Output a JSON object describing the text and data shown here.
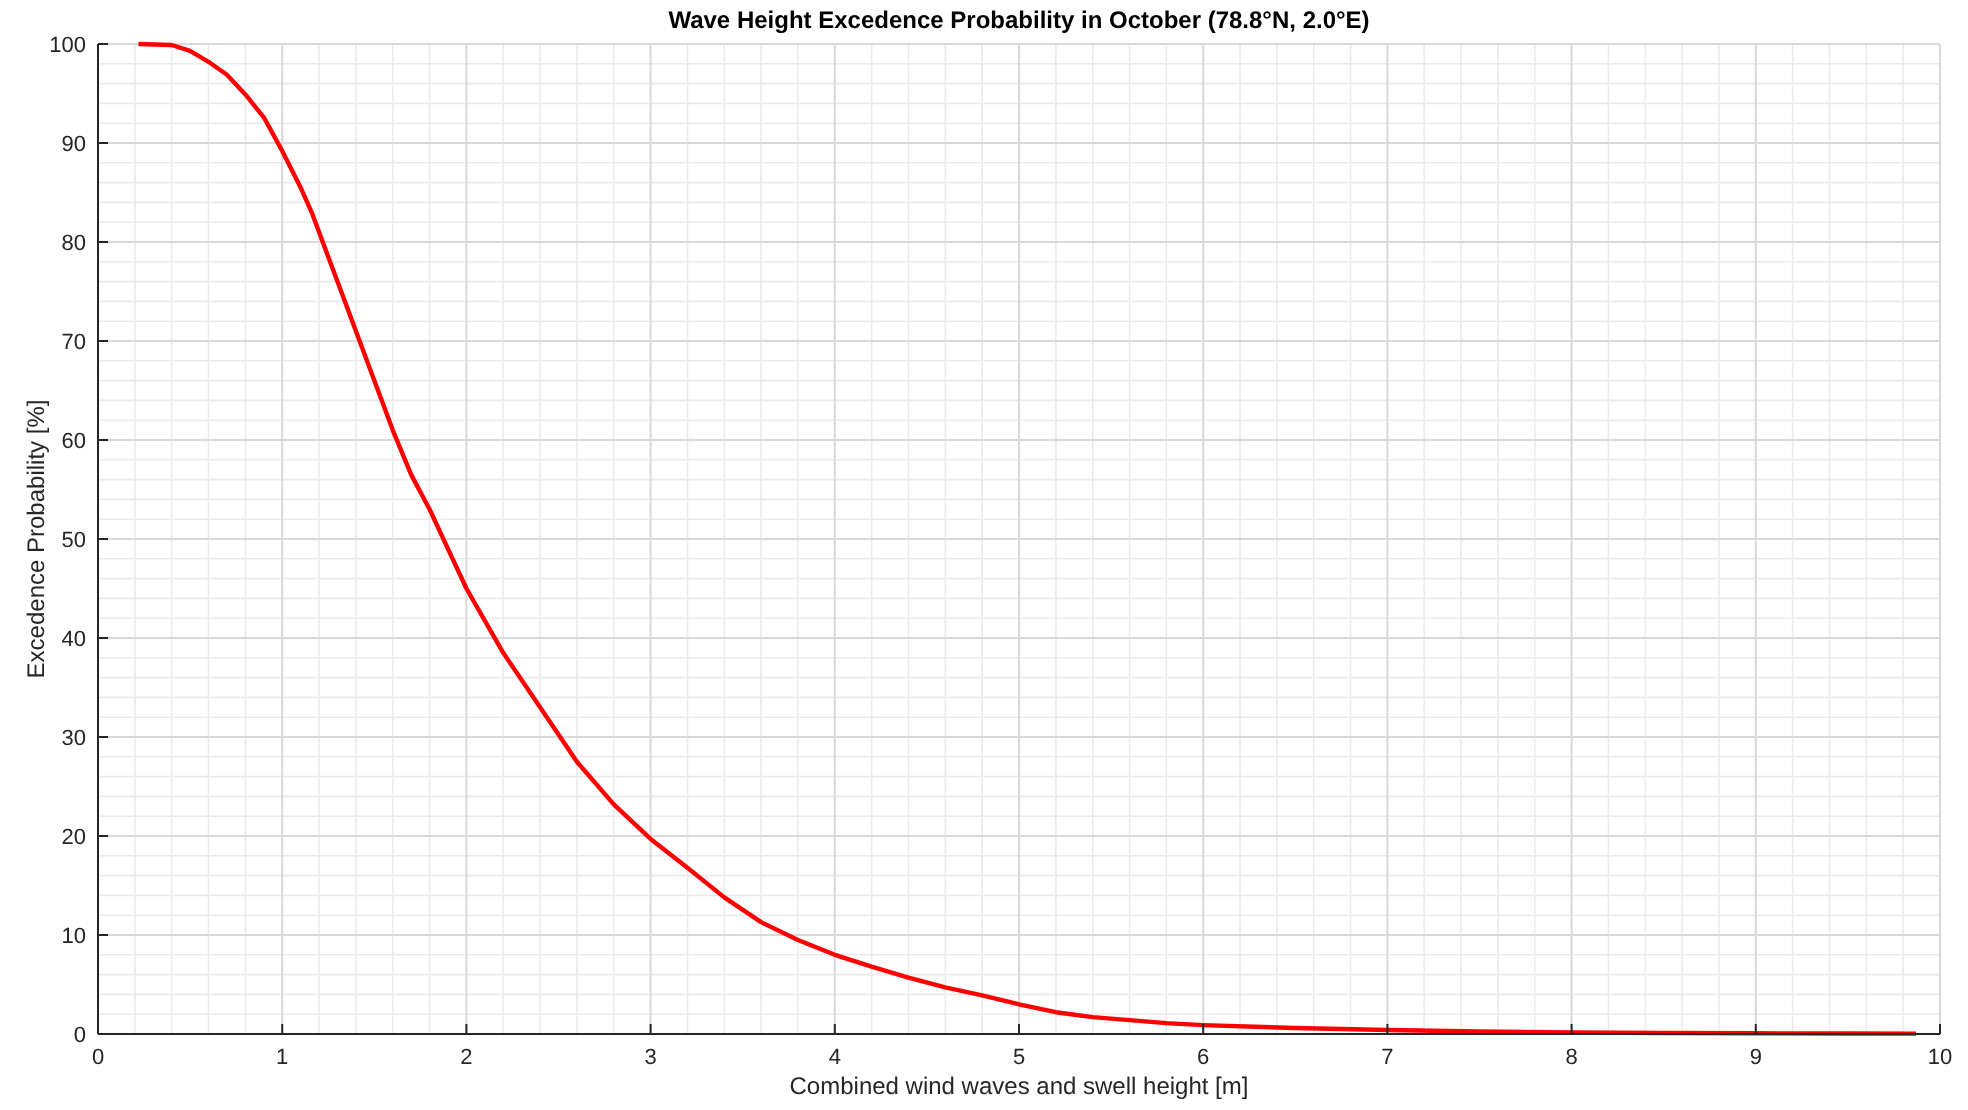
{
  "chart_data": {
    "type": "line",
    "title": "Wave Height Excedence Probability in October (78.8°N, 2.0°E)",
    "xlabel": "Combined wind waves and swell height [m]",
    "ylabel": "Excedence Probability [%]",
    "x": [
      0.22,
      0.4,
      0.5,
      0.6,
      0.7,
      0.8,
      0.9,
      1.0,
      1.1,
      1.16,
      1.3,
      1.4,
      1.5,
      1.6,
      1.7,
      1.8,
      1.9,
      2.0,
      2.2,
      2.4,
      2.6,
      2.8,
      3.0,
      3.2,
      3.4,
      3.6,
      3.8,
      4.0,
      4.2,
      4.4,
      4.6,
      4.8,
      5.0,
      5.2,
      5.4,
      5.6,
      5.8,
      6.0,
      6.5,
      7.0,
      7.5,
      8.0,
      8.5,
      9.0,
      9.5,
      9.87
    ],
    "series": [
      {
        "color": "#ff0000",
        "values": [
          100,
          99.9,
          99.3,
          98.2,
          96.9,
          94.9,
          92.6,
          89.2,
          85.5,
          83,
          76,
          71,
          66,
          61,
          56.5,
          53,
          49,
          45,
          38.5,
          33,
          27.5,
          23.2,
          19.7,
          16.8,
          13.8,
          11.3,
          9.5,
          8.0,
          6.8,
          5.7,
          4.7,
          3.9,
          3.0,
          2.2,
          1.7,
          1.4,
          1.1,
          0.9,
          0.6,
          0.4,
          0.25,
          0.15,
          0.1,
          0.07,
          0.05,
          0.04
        ]
      }
    ],
    "xlim": [
      0,
      10
    ],
    "ylim": [
      0,
      100
    ],
    "xticks": [
      0,
      1,
      2,
      3,
      4,
      5,
      6,
      7,
      8,
      9,
      10
    ],
    "yticks": [
      0,
      10,
      20,
      30,
      40,
      50,
      60,
      70,
      80,
      90,
      100
    ],
    "grid": true,
    "line_style": "solid",
    "marker": "none"
  }
}
